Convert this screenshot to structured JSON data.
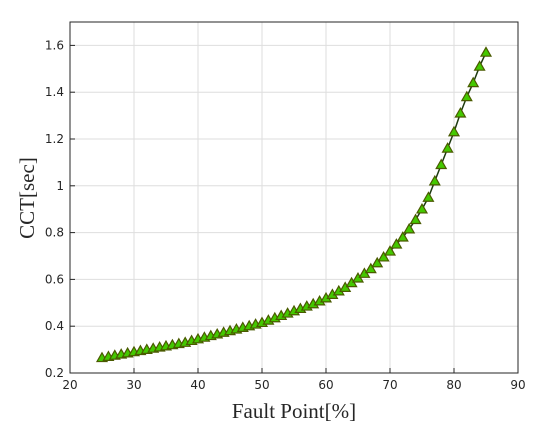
{
  "chart_data": {
    "type": "line",
    "xlabel": "Fault Point[%]",
    "ylabel": "CCT[sec]",
    "x": [
      25,
      26,
      27,
      28,
      29,
      30,
      31,
      32,
      33,
      34,
      35,
      36,
      37,
      38,
      39,
      40,
      41,
      42,
      43,
      44,
      45,
      46,
      47,
      48,
      49,
      50,
      51,
      52,
      53,
      54,
      55,
      56,
      57,
      58,
      59,
      60,
      61,
      62,
      63,
      64,
      65,
      66,
      67,
      68,
      69,
      70,
      71,
      72,
      73,
      74,
      75,
      76,
      77,
      78,
      79,
      80,
      81,
      82,
      83,
      84,
      85
    ],
    "values": [
      0.265,
      0.27,
      0.275,
      0.28,
      0.285,
      0.29,
      0.295,
      0.3,
      0.305,
      0.31,
      0.315,
      0.32,
      0.325,
      0.33,
      0.338,
      0.345,
      0.352,
      0.359,
      0.366,
      0.373,
      0.38,
      0.387,
      0.394,
      0.401,
      0.408,
      0.415,
      0.425,
      0.435,
      0.445,
      0.455,
      0.465,
      0.475,
      0.485,
      0.495,
      0.507,
      0.52,
      0.535,
      0.55,
      0.565,
      0.585,
      0.605,
      0.625,
      0.645,
      0.67,
      0.695,
      0.72,
      0.75,
      0.78,
      0.815,
      0.855,
      0.9,
      0.95,
      1.02,
      1.09,
      1.16,
      1.23,
      1.31,
      1.38,
      1.44,
      1.51,
      1.57
    ],
    "color": "#44c800",
    "xlim": [
      20,
      90
    ],
    "xticks": [
      20,
      30,
      40,
      50,
      60,
      70,
      80,
      90
    ],
    "ylim": [
      0.2,
      1.7
    ],
    "yticks": [
      0.2,
      0.4,
      0.6,
      0.8,
      1,
      1.2,
      1.4,
      1.6
    ],
    "grid": true
  }
}
